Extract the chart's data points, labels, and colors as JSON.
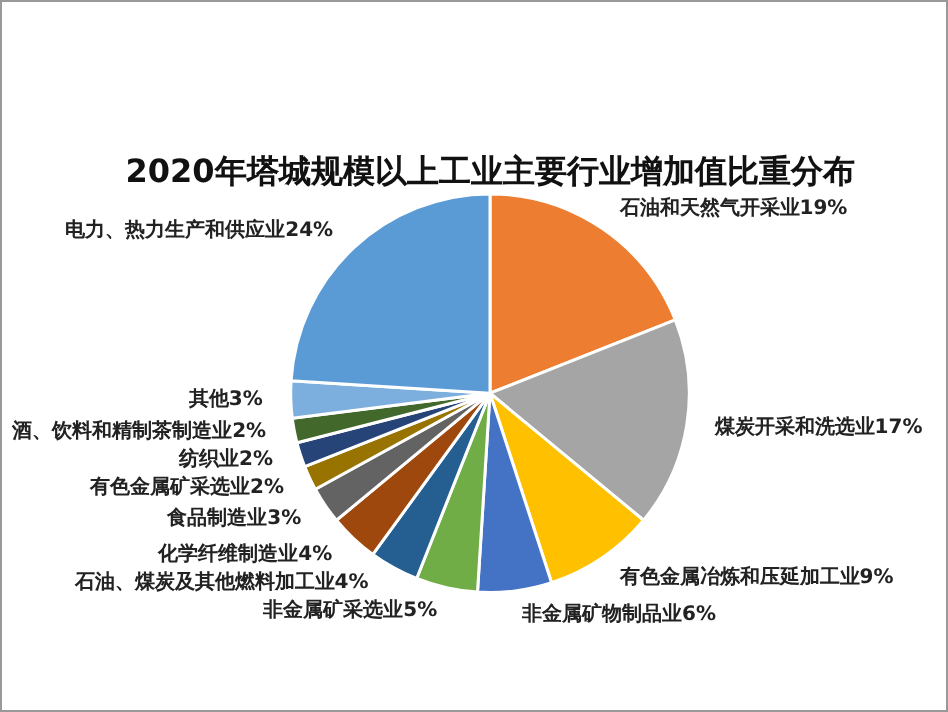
{
  "chart_data": {
    "type": "pie",
    "title": "2020年塔城规模以上工业主要行业增加值比重分布",
    "categories": [
      "石油和天然气开采业",
      "煤炭开采和洗选业",
      "有色金属冶炼和压延加工业",
      "非金属矿物制品业",
      "非金属矿采选业",
      "石油、煤炭及其他燃料加工业",
      "化学纤维制造业",
      "食品制造业",
      "有色金属矿采选业",
      "纺织业",
      "酒、饮料和精制茶制造业",
      "其他",
      "电力、热力生产和供应业"
    ],
    "values": [
      19,
      17,
      9,
      6,
      5,
      4,
      4,
      3,
      2,
      2,
      2,
      3,
      24
    ],
    "value_labels": [
      "19%",
      "17%",
      "9%",
      "6%",
      "5%",
      "4%",
      "4%",
      "3%",
      "2%",
      "2%",
      "2%",
      "3%",
      "24%"
    ],
    "colors": [
      "#ed7d31",
      "#a5a5a5",
      "#ffc000",
      "#4472c4",
      "#70ad47",
      "#255e91",
      "#9e480e",
      "#636363",
      "#997300",
      "#264478",
      "#43682b",
      "#7cafdd",
      "#5b9bd5"
    ],
    "legend": false
  }
}
